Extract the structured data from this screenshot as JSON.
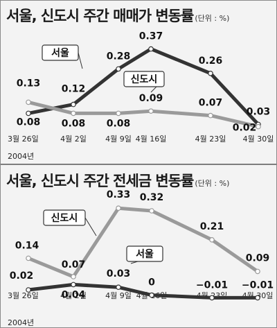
{
  "chart_data": [
    {
      "type": "line",
      "title": "서울, 신도시 주간 매매가 변동률",
      "unit": "(단위 : %)",
      "categories": [
        "3월 26일",
        "4월 2일",
        "4월 9일",
        "4월 16일",
        "4월 23일",
        "4월 30일"
      ],
      "year_label": "2004년",
      "ylim": [
        0,
        0.4
      ],
      "grid": false,
      "series": [
        {
          "name": "서울",
          "color": "#333333",
          "values": [
            0.08,
            0.12,
            0.28,
            0.37,
            0.26,
            0.03
          ],
          "labels": [
            "0.08",
            "0.12",
            "0.28",
            "0.37",
            "0.26",
            "0.03"
          ]
        },
        {
          "name": "신도시",
          "color": "#9a9a9a",
          "values": [
            0.13,
            0.08,
            0.08,
            0.09,
            0.07,
            0.02
          ],
          "labels": [
            "0.13",
            "0.08",
            "0.08",
            "0.09",
            "0.07",
            "0.02"
          ]
        }
      ]
    },
    {
      "type": "line",
      "title": "서울, 신도시 주간 전세금 변동률",
      "unit": "(단위 : %)",
      "categories": [
        "3월 26일",
        "4월 2일",
        "4월 9일",
        "4월 16일",
        "4월 23일",
        "4월 30일"
      ],
      "year_label": "2004년",
      "ylim": [
        -0.03,
        0.37
      ],
      "grid": false,
      "series": [
        {
          "name": "신도시",
          "color": "#9a9a9a",
          "values": [
            0.14,
            0.07,
            0.33,
            0.32,
            0.21,
            0.09
          ],
          "labels": [
            "0.14",
            "0.07",
            "0.33",
            "0.32",
            "0.21",
            "0.09"
          ]
        },
        {
          "name": "서울",
          "color": "#333333",
          "values": [
            0.02,
            0.04,
            0.03,
            0.0,
            -0.01,
            -0.01
          ],
          "labels": [
            "0.02",
            "0.04",
            "0.03",
            "0",
            "−0.01",
            "−0.01"
          ]
        }
      ]
    }
  ]
}
